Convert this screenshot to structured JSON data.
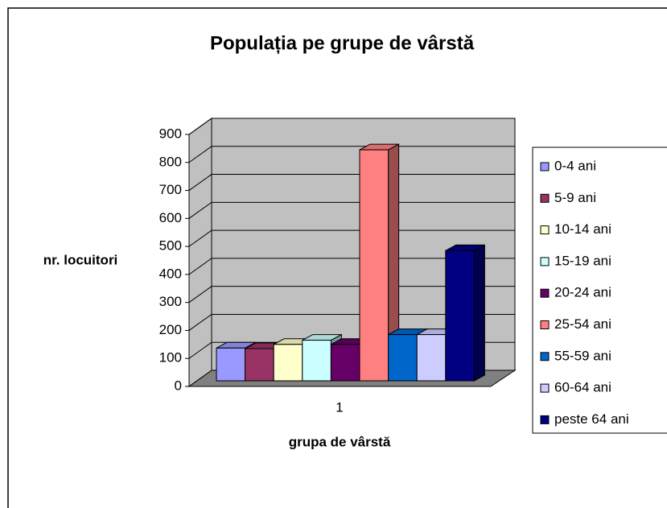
{
  "chart_data": {
    "type": "bar3d",
    "title": "Populația pe grupe de vârstă",
    "x_label": "grupa de vârstă",
    "y_label": "nr. locuitori",
    "categories": [
      "1"
    ],
    "series": [
      {
        "name": "0-4 ani",
        "color": "#9999ff",
        "values": [
          117
        ]
      },
      {
        "name": "5-9 ani",
        "color": "#993366",
        "values": [
          115
        ]
      },
      {
        "name": "10-14 ani",
        "color": "#ffffcc",
        "values": [
          130
        ]
      },
      {
        "name": "15-19 ani",
        "color": "#ccffff",
        "values": [
          145
        ]
      },
      {
        "name": "20-24 ani",
        "color": "#660066",
        "values": [
          130
        ]
      },
      {
        "name": "25-54 ani",
        "color": "#ff8080",
        "values": [
          825
        ]
      },
      {
        "name": "55-59 ani",
        "color": "#0066cc",
        "values": [
          165
        ]
      },
      {
        "name": "60-64 ani",
        "color": "#ccccff",
        "values": [
          165
        ]
      },
      {
        "name": "peste 64 ani",
        "color": "#000080",
        "values": [
          465
        ]
      }
    ],
    "ylim": [
      0,
      900
    ],
    "yticks": [
      0,
      100,
      200,
      300,
      400,
      500,
      600,
      700,
      800,
      900
    ],
    "grid": true,
    "legend": "right"
  }
}
